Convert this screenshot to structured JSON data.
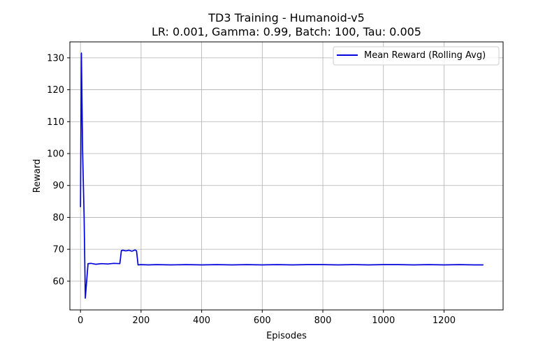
{
  "chart_data": {
    "type": "line",
    "title": "TD3 Training - Humanoid-v5",
    "subtitle": "LR: 0.001, Gamma: 0.99, Batch: 100, Tau: 0.005",
    "xlabel": "Episodes",
    "ylabel": "Reward",
    "xlim": [
      -35,
      1395
    ],
    "ylim": [
      51,
      135
    ],
    "xticks": [
      0,
      200,
      400,
      600,
      800,
      1000,
      1200
    ],
    "yticks": [
      60,
      70,
      80,
      90,
      100,
      110,
      120,
      130
    ],
    "grid": true,
    "legend_position": "top-right",
    "series": [
      {
        "name": "Mean Reward (Rolling Avg)",
        "color": "#0000dd",
        "x": [
          0,
          3,
          7,
          12,
          16,
          25,
          35,
          50,
          70,
          90,
          110,
          130,
          135,
          140,
          150,
          160,
          170,
          180,
          185,
          190,
          200,
          225,
          250,
          300,
          350,
          400,
          450,
          500,
          550,
          600,
          650,
          700,
          750,
          800,
          850,
          900,
          950,
          1000,
          1050,
          1100,
          1150,
          1200,
          1250,
          1300,
          1330
        ],
        "values": [
          83.2,
          131.5,
          101,
          80,
          54.7,
          65.5,
          65.6,
          65.3,
          65.5,
          65.4,
          65.6,
          65.5,
          69.6,
          69.7,
          69.5,
          69.7,
          69.4,
          69.8,
          69.5,
          65.1,
          65.2,
          65.1,
          65.2,
          65.1,
          65.2,
          65.1,
          65.2,
          65.1,
          65.2,
          65.1,
          65.2,
          65.1,
          65.2,
          65.2,
          65.1,
          65.2,
          65.1,
          65.2,
          65.2,
          65.1,
          65.2,
          65.1,
          65.2,
          65.1,
          65.1
        ]
      }
    ]
  }
}
